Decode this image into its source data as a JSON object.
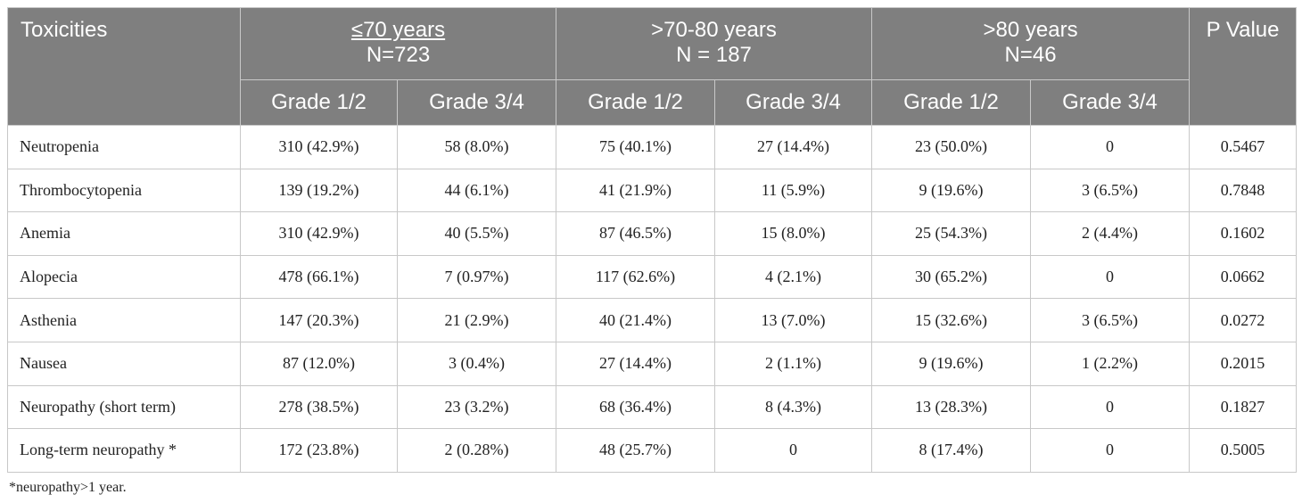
{
  "header": {
    "toxicities": "Toxicities",
    "groups": [
      {
        "label": "≤70 years",
        "n": "N=723"
      },
      {
        "label": ">70-80 years",
        "n": "N = 187"
      },
      {
        "label": ">80 years",
        "n": "N=46"
      }
    ],
    "pvalue": "P Value",
    "grade12": "Grade 1/2",
    "grade34": "Grade 3/4"
  },
  "rows": [
    {
      "name": "Neutropenia",
      "cells": [
        "310 (42.9%)",
        "58 (8.0%)",
        "75 (40.1%)",
        "27 (14.4%)",
        "23 (50.0%)",
        "0"
      ],
      "p": "0.5467"
    },
    {
      "name": "Thrombocytopenia",
      "cells": [
        "139 (19.2%)",
        "44 (6.1%)",
        "41 (21.9%)",
        "11 (5.9%)",
        "9 (19.6%)",
        "3 (6.5%)"
      ],
      "p": "0.7848"
    },
    {
      "name": "Anemia",
      "cells": [
        "310 (42.9%)",
        "40 (5.5%)",
        "87 (46.5%)",
        "15 (8.0%)",
        "25 (54.3%)",
        "2 (4.4%)"
      ],
      "p": "0.1602"
    },
    {
      "name": "Alopecia",
      "cells": [
        "478 (66.1%)",
        "7 (0.97%)",
        "117 (62.6%)",
        "4 (2.1%)",
        "30 (65.2%)",
        "0"
      ],
      "p": "0.0662"
    },
    {
      "name": "Asthenia",
      "cells": [
        "147 (20.3%)",
        "21 (2.9%)",
        "40 (21.4%)",
        "13 (7.0%)",
        "15 (32.6%)",
        "3 (6.5%)"
      ],
      "p": "0.0272"
    },
    {
      "name": "Nausea",
      "cells": [
        "87 (12.0%)",
        "3 (0.4%)",
        "27 (14.4%)",
        "2 (1.1%)",
        "9 (19.6%)",
        "1 (2.2%)"
      ],
      "p": "0.2015"
    },
    {
      "name": "Neuropathy (short term)",
      "cells": [
        "278 (38.5%)",
        "23 (3.2%)",
        "68 (36.4%)",
        "8 (4.3%)",
        "13 (28.3%)",
        "0"
      ],
      "p": "0.1827"
    },
    {
      "name": "Long-term neuropathy *",
      "cells": [
        "172 (23.8%)",
        "2 (0.28%)",
        "48 (25.7%)",
        "0",
        "8 (17.4%)",
        "0"
      ],
      "p": "0.5005"
    }
  ],
  "footnote": "*neuropathy>1 year."
}
